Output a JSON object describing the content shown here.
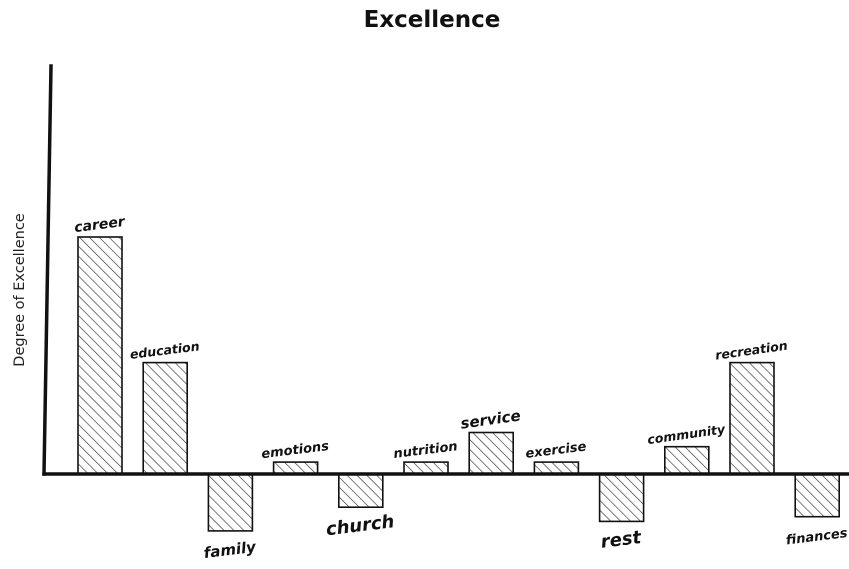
{
  "chart_data": {
    "type": "bar",
    "title": "Excellence",
    "xlabel": "",
    "ylabel": "Degree of Excellence",
    "categories": [
      "career",
      "education",
      "family",
      "emotions",
      "church",
      "nutrition",
      "service",
      "exercise",
      "rest",
      "community",
      "recreation",
      "finances"
    ],
    "values": [
      100,
      47,
      -24,
      5,
      -14,
      5,
      17.5,
      5,
      -20,
      11.5,
      47,
      -18
    ],
    "ylim": [
      -40,
      170
    ],
    "grid": false,
    "legend": "none",
    "bar_fill": "hatched",
    "colors": {
      "bar_stroke": "#111111",
      "hatch": "#333333",
      "axis": "#111111",
      "background": "#ffffff"
    }
  }
}
